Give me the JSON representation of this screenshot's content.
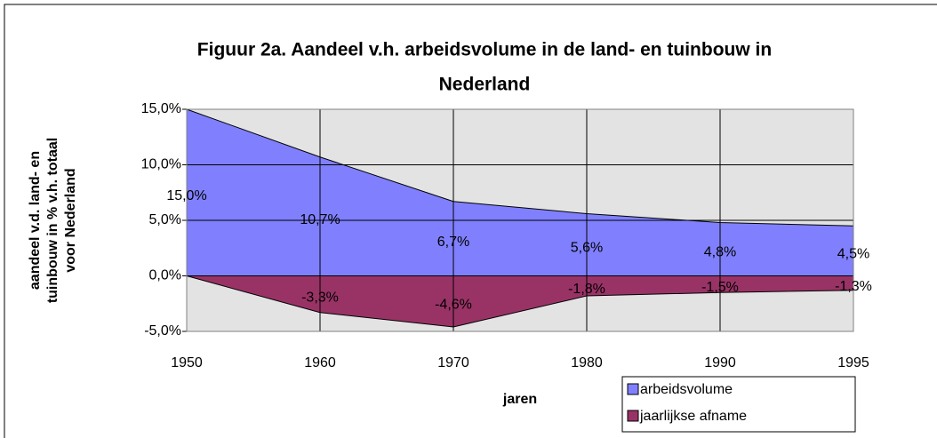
{
  "chart_data": {
    "type": "area",
    "title": [
      "Figuur 2a. Aandeel v.h. arbeidsvolume in de land- en tuinbouw in",
      "Nederland"
    ],
    "y_label": [
      "aandeel v.d. land- en",
      "tuinbouw in % v.h. totaal",
      "voor Nederland"
    ],
    "x_label": "jaren",
    "categories": [
      "1950",
      "1960",
      "1970",
      "1980",
      "1990",
      "1995"
    ],
    "series": [
      {
        "name": "arbeidsvolume",
        "color": "#8080ff",
        "values": [
          15.0,
          10.7,
          6.7,
          5.6,
          4.8,
          4.5
        ],
        "value_labels": [
          "15,0%",
          "10,7%",
          "6,7%",
          "5,6%",
          "4,8%",
          "4,5%"
        ]
      },
      {
        "name": "jaarlijkse afname",
        "color": "#993366",
        "values": [
          0,
          -3.3,
          -4.6,
          -1.8,
          -1.5,
          -1.3
        ],
        "value_labels": [
          null,
          "-3,3%",
          "-4,6%",
          "-1,8%",
          "-1,5%",
          "-1,3%"
        ]
      }
    ],
    "ylim": [
      -5,
      15
    ],
    "yticks": [
      {
        "value": -5,
        "label": "-5,0%"
      },
      {
        "value": 0,
        "label": "0,0%"
      },
      {
        "value": 5,
        "label": "5,0%"
      },
      {
        "value": 10,
        "label": "10,0%"
      },
      {
        "value": 15,
        "label": "15,0%"
      }
    ],
    "grid": true,
    "legend": "bottom-right"
  }
}
